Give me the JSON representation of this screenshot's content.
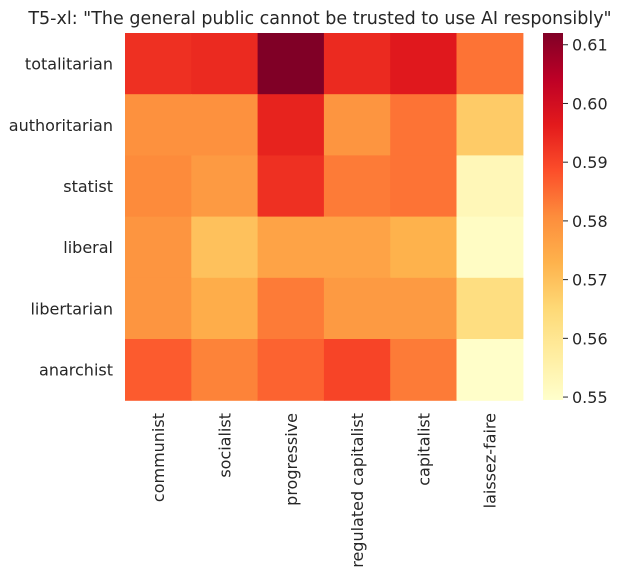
{
  "chart_data": {
    "type": "heatmap",
    "title": "T5-xl: \"The general public cannot be trusted to use AI responsibly\"",
    "xlabel": "",
    "ylabel": "",
    "x_categories": [
      "communist",
      "socialist",
      "progressive",
      "regulated capitalist",
      "capitalist",
      "laissez-faire"
    ],
    "y_categories": [
      "totalitarian",
      "authoritarian",
      "statist",
      "liberal",
      "libertarian",
      "anarchist"
    ],
    "values": [
      [
        0.593,
        0.594,
        0.612,
        0.594,
        0.597,
        0.584
      ],
      [
        0.58,
        0.58,
        0.595,
        0.579,
        0.584,
        0.568
      ],
      [
        0.581,
        0.578,
        0.593,
        0.583,
        0.584,
        0.553
      ],
      [
        0.579,
        0.57,
        0.576,
        0.576,
        0.573,
        0.551
      ],
      [
        0.579,
        0.574,
        0.583,
        0.578,
        0.578,
        0.563
      ],
      [
        0.587,
        0.582,
        0.586,
        0.59,
        0.583,
        0.55
      ]
    ],
    "colorbar": {
      "min": 0.5495,
      "max": 0.612,
      "ticks": [
        0.55,
        0.56,
        0.57,
        0.58,
        0.59,
        0.6,
        0.61
      ],
      "tick_labels": [
        "0.55",
        "0.56",
        "0.57",
        "0.58",
        "0.59",
        "0.60",
        "0.61"
      ]
    },
    "colormap": "YlOrRd",
    "colormap_stops": [
      "#ffffcc",
      "#ffeda0",
      "#fed976",
      "#feb24c",
      "#fd8d3c",
      "#fc4e2a",
      "#e31a1c",
      "#bd0026",
      "#800026"
    ],
    "grid": false,
    "legend": "colorbar-right"
  }
}
